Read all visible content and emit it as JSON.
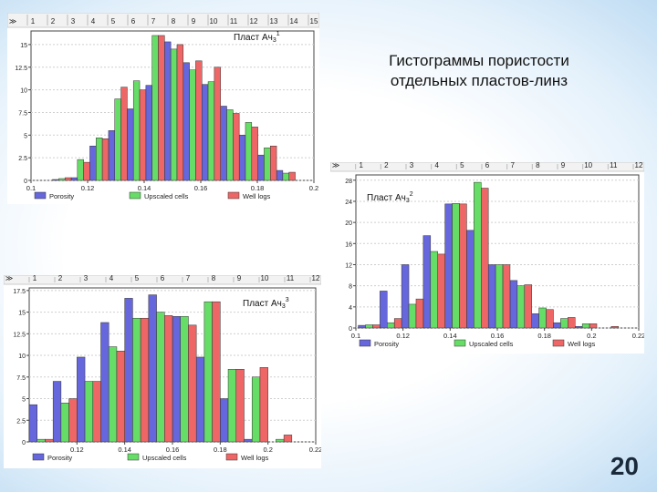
{
  "slide": {
    "title_lines": [
      "Гистограммы пористости",
      "отдельных пластов-линз"
    ],
    "number": "20"
  },
  "colors": {
    "porosity": "#6666dd",
    "upscaled": "#66dd66",
    "welllogs": "#ee6666",
    "border": "#333333",
    "grid": "#bbbbbb"
  },
  "chart_data": [
    {
      "type": "bar",
      "id": "chart1",
      "label_html": [
        "Пласт Ач",
        "3",
        "1"
      ],
      "top_ticks": [
        "≫",
        "1",
        "2",
        "3",
        "4",
        "5",
        "6",
        "7",
        "8",
        "9",
        "10",
        "11",
        "12",
        "13",
        "14",
        "15"
      ],
      "xlim": [
        0.1,
        0.2
      ],
      "ylim": [
        0,
        16.5
      ],
      "yticks": [
        {
          "v": 0,
          "l": "0"
        },
        {
          "v": 2.5,
          "l": "2.5"
        },
        {
          "v": 5,
          "l": "5"
        },
        {
          "v": 7.5,
          "l": "7.5"
        },
        {
          "v": 10,
          "l": "10"
        },
        {
          "v": 12.5,
          "l": "12.5"
        },
        {
          "v": 15,
          "l": "15"
        }
      ],
      "xticks": [
        {
          "v": 0.1,
          "l": "0.1"
        },
        {
          "v": 0.12,
          "l": "0.12"
        },
        {
          "v": 0.14,
          "l": "0.14"
        },
        {
          "v": 0.16,
          "l": "0.16"
        },
        {
          "v": 0.18,
          "l": "0.18"
        },
        {
          "v": 0.2,
          "l": "0.2"
        }
      ],
      "bin_start": 0.101,
      "bin_width": 0.0066,
      "series": [
        {
          "name": "Porosity",
          "values": [
            0,
            0.1,
            0.3,
            3.8,
            5.5,
            7.9,
            10.5,
            15.3,
            13.0,
            10.6,
            8.2,
            5.0,
            2.8,
            1.1
          ]
        },
        {
          "name": "Upscaled cells",
          "values": [
            0,
            0.2,
            2.3,
            4.7,
            9.0,
            11.0,
            16.0,
            14.5,
            12.2,
            10.9,
            7.8,
            6.4,
            3.6,
            0.8
          ]
        },
        {
          "name": "Well logs",
          "values": [
            0,
            0.3,
            2.0,
            4.6,
            10.3,
            10.0,
            16.0,
            15.0,
            13.2,
            12.5,
            7.4,
            5.9,
            3.8,
            0.9
          ]
        }
      ],
      "legend": [
        "Porosity",
        "Upscaled cells",
        "Well logs"
      ]
    },
    {
      "type": "bar",
      "id": "chart2",
      "label_html": [
        "Пласт Ач",
        "3",
        "2"
      ],
      "top_ticks": [
        "≫",
        "1",
        "2",
        "3",
        "4",
        "5",
        "6",
        "7",
        "8",
        "9",
        "10",
        "11",
        "12"
      ],
      "xlim": [
        0.1,
        0.22
      ],
      "ylim": [
        0,
        29
      ],
      "yticks": [
        {
          "v": 0,
          "l": "0"
        },
        {
          "v": 4,
          "l": "4"
        },
        {
          "v": 8,
          "l": "8"
        },
        {
          "v": 12,
          "l": "12"
        },
        {
          "v": 16,
          "l": "16"
        },
        {
          "v": 20,
          "l": "20"
        },
        {
          "v": 24,
          "l": "24"
        },
        {
          "v": 28,
          "l": "28"
        }
      ],
      "xticks": [
        {
          "v": 0.1,
          "l": "0.1"
        },
        {
          "v": 0.12,
          "l": "0.12"
        },
        {
          "v": 0.14,
          "l": "0.14"
        },
        {
          "v": 0.16,
          "l": "0.16"
        },
        {
          "v": 0.18,
          "l": "0.18"
        },
        {
          "v": 0.2,
          "l": "0.2"
        },
        {
          "v": 0.22,
          "l": "0.22"
        }
      ],
      "bin_start": 0.101,
      "bin_width": 0.0092,
      "series": [
        {
          "name": "Porosity",
          "values": [
            0.5,
            7.0,
            12.0,
            17.5,
            23.5,
            18.5,
            12.0,
            9.0,
            2.7,
            1.0,
            0.3,
            0
          ]
        },
        {
          "name": "Upscaled cells",
          "values": [
            0.6,
            1.0,
            4.5,
            14.5,
            23.6,
            27.6,
            12.0,
            8.0,
            3.8,
            1.8,
            0.8,
            0
          ]
        },
        {
          "name": "Well logs",
          "values": [
            0.6,
            1.8,
            5.5,
            14.0,
            23.5,
            26.5,
            12.0,
            8.2,
            3.5,
            2.0,
            0.8,
            0.3
          ]
        }
      ],
      "legend": [
        "Porosity",
        "Upscaled cells",
        "Well logs"
      ]
    },
    {
      "type": "bar",
      "id": "chart3",
      "label_html": [
        "Пласт Ач",
        "3",
        "3"
      ],
      "top_ticks": [
        "≫",
        "1",
        "2",
        "3",
        "4",
        "5",
        "6",
        "7",
        "8",
        "9",
        "10",
        "11",
        "12"
      ],
      "xlim": [
        0.1,
        0.22
      ],
      "ylim": [
        0,
        17.8
      ],
      "yticks": [
        {
          "v": 0,
          "l": "0"
        },
        {
          "v": 2.5,
          "l": "2.5"
        },
        {
          "v": 5,
          "l": "5"
        },
        {
          "v": 7.5,
          "l": "7.5"
        },
        {
          "v": 10,
          "l": "10"
        },
        {
          "v": 12.5,
          "l": "12.5"
        },
        {
          "v": 15,
          "l": "15"
        },
        {
          "v": 17.5,
          "l": "17.5"
        }
      ],
      "xticks": [
        {
          "v": 0.12,
          "l": "0.12"
        },
        {
          "v": 0.14,
          "l": "0.14"
        },
        {
          "v": 0.16,
          "l": "0.16"
        },
        {
          "v": 0.18,
          "l": "0.18"
        },
        {
          "v": 0.2,
          "l": "0.2"
        },
        {
          "v": 0.22,
          "l": "0.22"
        }
      ],
      "bin_start": 0.1,
      "bin_width": 0.01,
      "series": [
        {
          "name": "Porosity",
          "values": [
            4.3,
            7.0,
            9.8,
            13.8,
            16.6,
            17.0,
            14.5,
            9.8,
            5.0,
            0.3,
            0
          ]
        },
        {
          "name": "Upscaled cells",
          "values": [
            0.3,
            4.5,
            7.0,
            11.0,
            14.3,
            15.0,
            14.5,
            16.2,
            8.4,
            7.5,
            0.3
          ]
        },
        {
          "name": "Well logs",
          "values": [
            0.3,
            5.0,
            7.0,
            10.5,
            14.3,
            14.6,
            13.5,
            16.2,
            8.4,
            8.6,
            0.8
          ]
        }
      ],
      "legend": [
        "Porosity",
        "Upscaled cells",
        "Well logs"
      ]
    }
  ]
}
